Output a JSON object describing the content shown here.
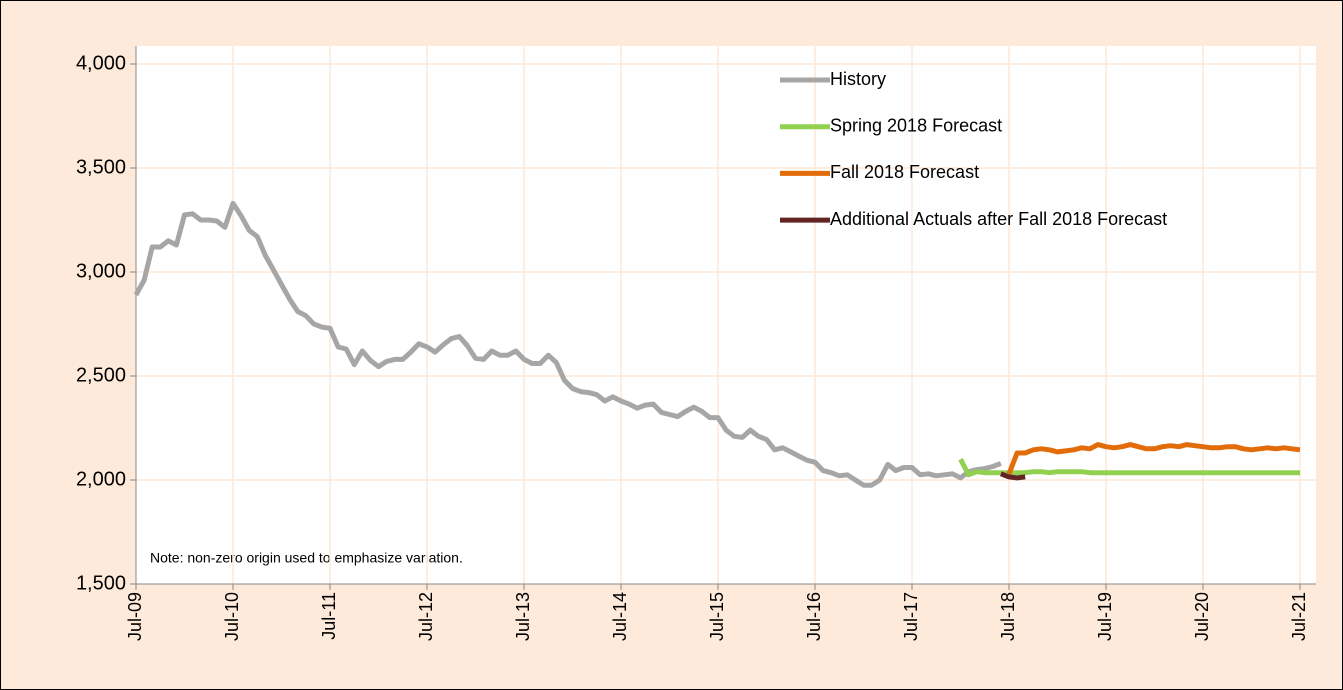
{
  "chart_data": {
    "type": "line",
    "note": "Note: non-zero origin used to emphasize variation.",
    "x": [
      "2009-07",
      "2009-08",
      "2009-09",
      "2009-10",
      "2009-11",
      "2009-12",
      "2010-01",
      "2010-02",
      "2010-03",
      "2010-04",
      "2010-05",
      "2010-06",
      "2010-07",
      "2010-08",
      "2010-09",
      "2010-10",
      "2010-11",
      "2010-12",
      "2011-01",
      "2011-02",
      "2011-03",
      "2011-04",
      "2011-05",
      "2011-06",
      "2011-07",
      "2011-08",
      "2011-09",
      "2011-10",
      "2011-11",
      "2011-12",
      "2012-01",
      "2012-02",
      "2012-03",
      "2012-04",
      "2012-05",
      "2012-06",
      "2012-07",
      "2012-08",
      "2012-09",
      "2012-10",
      "2012-11",
      "2012-12",
      "2013-01",
      "2013-02",
      "2013-03",
      "2013-04",
      "2013-05",
      "2013-06",
      "2013-07",
      "2013-08",
      "2013-09",
      "2013-10",
      "2013-11",
      "2013-12",
      "2014-01",
      "2014-02",
      "2014-03",
      "2014-04",
      "2014-05",
      "2014-06",
      "2014-07",
      "2014-08",
      "2014-09",
      "2014-10",
      "2014-11",
      "2014-12",
      "2015-01",
      "2015-02",
      "2015-03",
      "2015-04",
      "2015-05",
      "2015-06",
      "2015-07",
      "2015-08",
      "2015-09",
      "2015-10",
      "2015-11",
      "2015-12",
      "2016-01",
      "2016-02",
      "2016-03",
      "2016-04",
      "2016-05",
      "2016-06",
      "2016-07",
      "2016-08",
      "2016-09",
      "2016-10",
      "2016-11",
      "2016-12",
      "2017-01",
      "2017-02",
      "2017-03",
      "2017-04",
      "2017-05",
      "2017-06",
      "2017-07",
      "2017-08",
      "2017-09",
      "2017-10",
      "2017-11",
      "2017-12",
      "2018-01",
      "2018-02",
      "2018-03",
      "2018-04",
      "2018-05",
      "2018-06",
      "2018-07",
      "2018-08",
      "2018-09",
      "2018-10",
      "2018-11",
      "2018-12",
      "2019-01",
      "2019-02",
      "2019-03",
      "2019-04",
      "2019-05",
      "2019-06",
      "2019-07",
      "2019-08",
      "2019-09",
      "2019-10",
      "2019-11",
      "2019-12",
      "2020-01",
      "2020-02",
      "2020-03",
      "2020-04",
      "2020-05",
      "2020-06",
      "2020-07",
      "2020-08",
      "2020-09",
      "2020-10",
      "2020-11",
      "2020-12",
      "2021-01",
      "2021-02",
      "2021-03",
      "2021-04",
      "2021-05",
      "2021-06",
      "2021-07"
    ],
    "xlim": [
      "2009-07",
      "2021-07"
    ],
    "xticks": [
      {
        "value": "2009-07",
        "label": "Jul-09"
      },
      {
        "value": "2010-07",
        "label": "Jul-10"
      },
      {
        "value": "2011-07",
        "label": "Jul-11"
      },
      {
        "value": "2012-07",
        "label": "Jul-12"
      },
      {
        "value": "2013-07",
        "label": "Jul-13"
      },
      {
        "value": "2014-07",
        "label": "Jul-14"
      },
      {
        "value": "2015-07",
        "label": "Jul-15"
      },
      {
        "value": "2016-07",
        "label": "Jul-16"
      },
      {
        "value": "2017-07",
        "label": "Jul-17"
      },
      {
        "value": "2018-07",
        "label": "Jul-18"
      },
      {
        "value": "2019-07",
        "label": "Jul-19"
      },
      {
        "value": "2020-07",
        "label": "Jul-20"
      },
      {
        "value": "2021-07",
        "label": "Jul-21"
      }
    ],
    "ylim": [
      1500,
      4000
    ],
    "yticks": [
      {
        "value": 1500,
        "label": "1,500"
      },
      {
        "value": 2000,
        "label": "2,000"
      },
      {
        "value": 2500,
        "label": "2,500"
      },
      {
        "value": 3000,
        "label": "3,000"
      },
      {
        "value": 3500,
        "label": "3,500"
      },
      {
        "value": 4000,
        "label": "4,000"
      }
    ],
    "grid": true,
    "legend": "upper right",
    "series": [
      {
        "name": "History",
        "color": "#a6a6a6",
        "values": [
          2890,
          2960,
          3120,
          3120,
          3150,
          3130,
          3275,
          3280,
          3250,
          3250,
          3245,
          3215,
          3330,
          3270,
          3200,
          3170,
          3080,
          3010,
          2940,
          2870,
          2810,
          2790,
          2750,
          2735,
          2730,
          2640,
          2630,
          2555,
          2620,
          2575,
          2545,
          2570,
          2580,
          2580,
          2615,
          2655,
          2640,
          2615,
          2650,
          2680,
          2690,
          2645,
          2585,
          2580,
          2620,
          2600,
          2600,
          2620,
          2580,
          2560,
          2560,
          2600,
          2565,
          2480,
          2440,
          2425,
          2420,
          2410,
          2380,
          2400,
          2380,
          2365,
          2345,
          2360,
          2365,
          2325,
          2315,
          2305,
          2330,
          2350,
          2330,
          2300,
          2300,
          2240,
          2210,
          2205,
          2240,
          2210,
          2195,
          2145,
          2155,
          2135,
          2115,
          2095,
          2085,
          2045,
          2035,
          2020,
          2025,
          2000,
          1975,
          1975,
          2000,
          2075,
          2045,
          2060,
          2060,
          2025,
          2030,
          2020,
          2025,
          2030,
          2010,
          2040,
          2050,
          2055,
          2065,
          2080,
          null,
          null,
          null,
          null,
          null,
          null,
          null,
          null,
          null,
          null,
          null,
          null,
          null,
          null,
          null,
          null,
          null,
          null,
          null,
          null,
          null,
          null,
          null,
          null,
          null,
          null,
          null,
          null,
          null,
          null,
          null,
          null,
          null,
          null,
          null,
          null,
          null
        ]
      },
      {
        "name": "Spring 2018 Forecast",
        "color": "#92d050",
        "values": [
          null,
          null,
          null,
          null,
          null,
          null,
          null,
          null,
          null,
          null,
          null,
          null,
          null,
          null,
          null,
          null,
          null,
          null,
          null,
          null,
          null,
          null,
          null,
          null,
          null,
          null,
          null,
          null,
          null,
          null,
          null,
          null,
          null,
          null,
          null,
          null,
          null,
          null,
          null,
          null,
          null,
          null,
          null,
          null,
          null,
          null,
          null,
          null,
          null,
          null,
          null,
          null,
          null,
          null,
          null,
          null,
          null,
          null,
          null,
          null,
          null,
          null,
          null,
          null,
          null,
          null,
          null,
          null,
          null,
          null,
          null,
          null,
          null,
          null,
          null,
          null,
          null,
          null,
          null,
          null,
          null,
          null,
          null,
          null,
          null,
          null,
          null,
          null,
          null,
          null,
          null,
          null,
          null,
          null,
          null,
          null,
          null,
          null,
          null,
          null,
          null,
          null,
          2100,
          2025,
          2040,
          2035,
          2035,
          2035,
          2035,
          2035,
          2035,
          2040,
          2040,
          2035,
          2040,
          2040,
          2040,
          2040,
          2035,
          2035,
          2035,
          2035,
          2035,
          2035,
          2035,
          2035,
          2035,
          2035,
          2035,
          2035,
          2035,
          2035,
          2035,
          2035,
          2035,
          2035,
          2035,
          2035,
          2035,
          2035,
          2035,
          2035,
          2035,
          2035,
          2035
        ]
      },
      {
        "name": "Fall 2018 Forecast",
        "color": "#e36c0a",
        "values": [
          null,
          null,
          null,
          null,
          null,
          null,
          null,
          null,
          null,
          null,
          null,
          null,
          null,
          null,
          null,
          null,
          null,
          null,
          null,
          null,
          null,
          null,
          null,
          null,
          null,
          null,
          null,
          null,
          null,
          null,
          null,
          null,
          null,
          null,
          null,
          null,
          null,
          null,
          null,
          null,
          null,
          null,
          null,
          null,
          null,
          null,
          null,
          null,
          null,
          null,
          null,
          null,
          null,
          null,
          null,
          null,
          null,
          null,
          null,
          null,
          null,
          null,
          null,
          null,
          null,
          null,
          null,
          null,
          null,
          null,
          null,
          null,
          null,
          null,
          null,
          null,
          null,
          null,
          null,
          null,
          null,
          null,
          null,
          null,
          null,
          null,
          null,
          null,
          null,
          null,
          null,
          null,
          null,
          null,
          null,
          null,
          null,
          null,
          null,
          null,
          null,
          null,
          null,
          null,
          null,
          null,
          null,
          null,
          2030,
          2130,
          2130,
          2145,
          2150,
          2145,
          2135,
          2140,
          2145,
          2155,
          2150,
          2170,
          2160,
          2155,
          2160,
          2170,
          2160,
          2150,
          2150,
          2160,
          2165,
          2160,
          2170,
          2165,
          2160,
          2155,
          2155,
          2160,
          2160,
          2150,
          2145,
          2150,
          2155,
          2150,
          2155,
          2150,
          2145
        ]
      },
      {
        "name": "Additional Actuals after Fall 2018 Forecast",
        "color": "#632523",
        "values": [
          null,
          null,
          null,
          null,
          null,
          null,
          null,
          null,
          null,
          null,
          null,
          null,
          null,
          null,
          null,
          null,
          null,
          null,
          null,
          null,
          null,
          null,
          null,
          null,
          null,
          null,
          null,
          null,
          null,
          null,
          null,
          null,
          null,
          null,
          null,
          null,
          null,
          null,
          null,
          null,
          null,
          null,
          null,
          null,
          null,
          null,
          null,
          null,
          null,
          null,
          null,
          null,
          null,
          null,
          null,
          null,
          null,
          null,
          null,
          null,
          null,
          null,
          null,
          null,
          null,
          null,
          null,
          null,
          null,
          null,
          null,
          null,
          null,
          null,
          null,
          null,
          null,
          null,
          null,
          null,
          null,
          null,
          null,
          null,
          null,
          null,
          null,
          null,
          null,
          null,
          null,
          null,
          null,
          null,
          null,
          null,
          null,
          null,
          null,
          null,
          null,
          null,
          null,
          null,
          null,
          null,
          null,
          2030,
          2015,
          2010,
          2015,
          null,
          null,
          null,
          null,
          null,
          null,
          null,
          null,
          null,
          null,
          null,
          null,
          null,
          null,
          null,
          null,
          null,
          null,
          null,
          null,
          null,
          null,
          null,
          null,
          null,
          null,
          null,
          null,
          null,
          null,
          null,
          null,
          null,
          null
        ]
      }
    ]
  }
}
